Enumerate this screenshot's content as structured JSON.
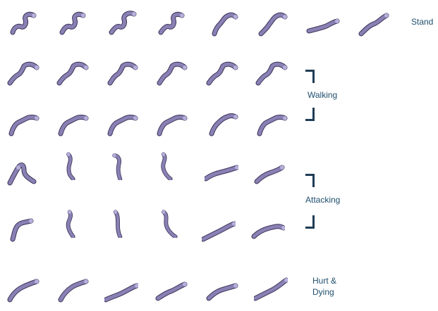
{
  "sheet": {
    "labels": {
      "stand": "Stand",
      "walking": "Walking",
      "attacking": "Attacking",
      "hurt_line1": "Hurt &",
      "hurt_line2": "Dying"
    },
    "colors": {
      "body": "#8a80b4",
      "body_light": "#b7b0dc",
      "outline": "#3b3558",
      "label": "#1f4e6e",
      "bracket": "#1f3d56"
    },
    "rows": [
      {
        "name": "stand",
        "frames": 8
      },
      {
        "name": "walking-1",
        "frames": 6
      },
      {
        "name": "walking-2",
        "frames": 6
      },
      {
        "name": "attacking-1",
        "frames": 6
      },
      {
        "name": "attacking-2",
        "frames": 6
      },
      {
        "name": "hurt-dying",
        "frames": 6
      }
    ]
  }
}
